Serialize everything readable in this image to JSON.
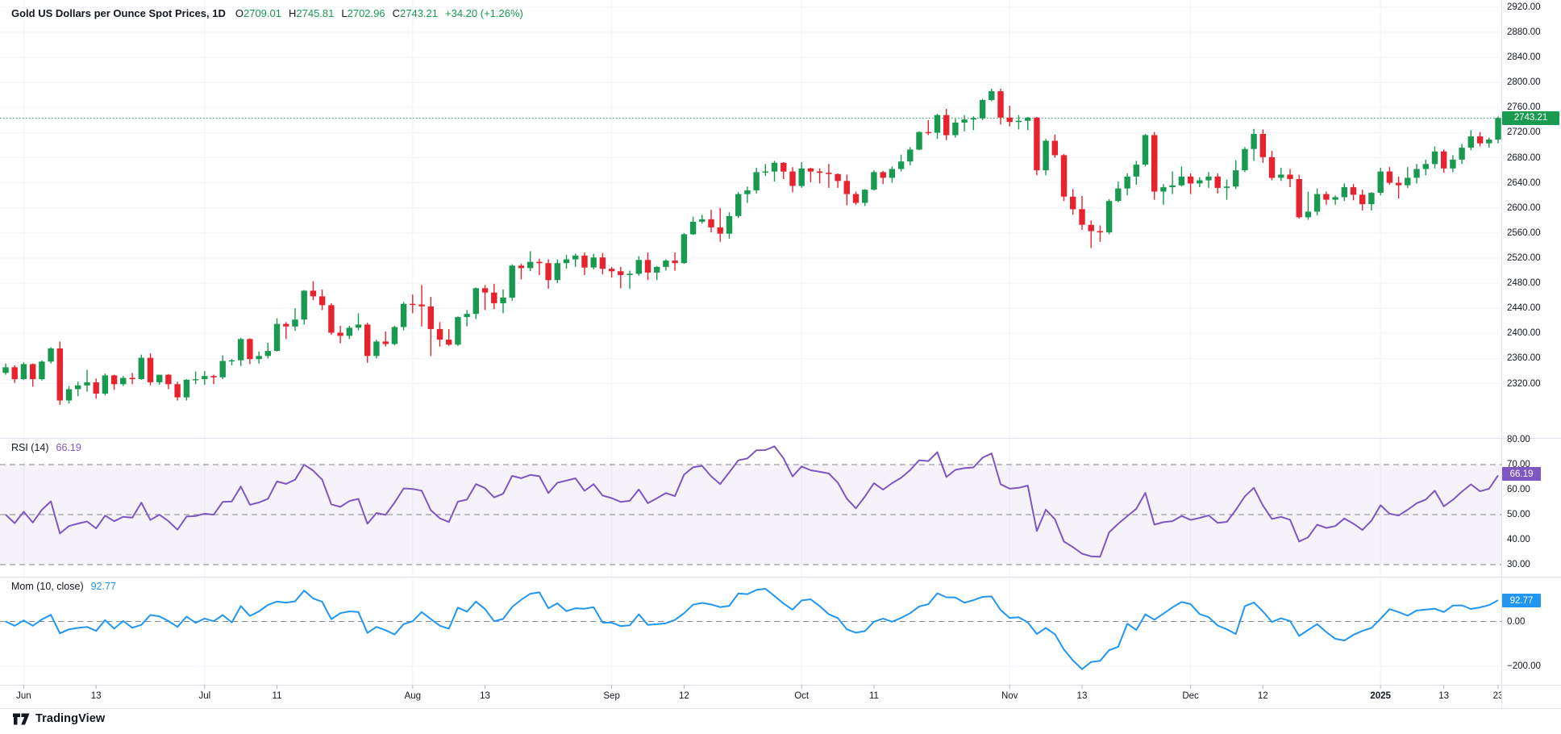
{
  "header": {
    "title": "Gold US Dollars per Ounce Spot Prices, 1D",
    "ohlc": {
      "o_label": "O",
      "o": "2709.01",
      "h_label": "H",
      "h": "2745.81",
      "l_label": "L",
      "l": "2702.96",
      "c_label": "C",
      "c": "2743.21",
      "change": "+34.20 (+1.26%)"
    }
  },
  "indicators": {
    "rsi": {
      "label": "RSI (14)",
      "value": "66.19",
      "color": "#7e57c2",
      "period": 14,
      "overbought": 70,
      "midline": 50,
      "oversold": 30
    },
    "mom": {
      "label": "Mom (10, close)",
      "value": "92.77",
      "color": "#2196f3",
      "period": 10,
      "source": "close",
      "zero_level": 0
    }
  },
  "badges": {
    "price": "2743.21",
    "rsi": "66.19",
    "mom": "92.77"
  },
  "axes": {
    "price": [
      {
        "t": "2920.00",
        "v": 2920
      },
      {
        "t": "2880.00",
        "v": 2880
      },
      {
        "t": "2840.00",
        "v": 2840
      },
      {
        "t": "2800.00",
        "v": 2800
      },
      {
        "t": "2760.00",
        "v": 2760
      },
      {
        "t": "2720.00",
        "v": 2720
      },
      {
        "t": "2680.00",
        "v": 2680
      },
      {
        "t": "2640.00",
        "v": 2640
      },
      {
        "t": "2600.00",
        "v": 2600
      },
      {
        "t": "2560.00",
        "v": 2560
      },
      {
        "t": "2520.00",
        "v": 2520
      },
      {
        "t": "2480.00",
        "v": 2480
      },
      {
        "t": "2440.00",
        "v": 2440
      },
      {
        "t": "2400.00",
        "v": 2400
      },
      {
        "t": "2360.00",
        "v": 2360
      },
      {
        "t": "2320.00",
        "v": 2320
      }
    ],
    "rsi": [
      {
        "t": "80.00",
        "v": 80
      },
      {
        "t": "70.00",
        "v": 70
      },
      {
        "t": "60.00",
        "v": 60
      },
      {
        "t": "50.00",
        "v": 50
      },
      {
        "t": "40.00",
        "v": 40
      },
      {
        "t": "30.00",
        "v": 30
      }
    ],
    "mom": [
      {
        "t": "0.00",
        "v": 0
      },
      {
        "t": "−200.00",
        "v": -200
      }
    ],
    "time": [
      {
        "t": "Jun",
        "i": 2,
        "m": false
      },
      {
        "t": "13",
        "i": 10,
        "m": false
      },
      {
        "t": "Jul",
        "i": 22,
        "m": false
      },
      {
        "t": "11",
        "i": 30,
        "m": false
      },
      {
        "t": "Aug",
        "i": 45,
        "m": false
      },
      {
        "t": "13",
        "i": 53,
        "m": false
      },
      {
        "t": "Sep",
        "i": 67,
        "m": false
      },
      {
        "t": "12",
        "i": 75,
        "m": false
      },
      {
        "t": "Oct",
        "i": 88,
        "m": false
      },
      {
        "t": "11",
        "i": 96,
        "m": false
      },
      {
        "t": "Nov",
        "i": 111,
        "m": false
      },
      {
        "t": "13",
        "i": 119,
        "m": false
      },
      {
        "t": "Dec",
        "i": 131,
        "m": false
      },
      {
        "t": "12",
        "i": 139,
        "m": false
      },
      {
        "t": "2025",
        "i": 152,
        "m": true
      },
      {
        "t": "13",
        "i": 159,
        "m": false
      },
      {
        "t": "23",
        "i": 165,
        "m": false
      }
    ]
  },
  "colors": {
    "up": "#189a50",
    "down": "#e8232e",
    "grid": "#f0f3fa",
    "border": "#e0e3eb",
    "level": "#82858f",
    "tick": "#b2b5be",
    "text": "#131722",
    "rsi_band": "rgba(126,87,194,0.08)"
  },
  "footer": {
    "brand": "TradingView"
  },
  "chart_data": {
    "type": "candlestick",
    "symbol": "Gold US Dollars per Ounce Spot Prices",
    "interval": "1D",
    "date_range": "late May 2024 to Jan 23 2025",
    "price_axis_visible_range": [
      2233,
      2931
    ],
    "rsi_axis_visible_range": [
      26,
      81
    ],
    "mom_axis_visible_range": [
      -290,
      196
    ],
    "last": {
      "o": 2709.01,
      "h": 2745.81,
      "l": 2702.96,
      "c": 2743.21,
      "change": "+34.20",
      "change_pct": "+1.26%"
    },
    "month_start_indices": [
      2,
      22,
      45,
      67,
      88,
      111,
      131,
      152
    ],
    "candles": [
      [
        2337,
        2352,
        2334,
        2346
      ],
      [
        2346,
        2349,
        2321,
        2327
      ],
      [
        2327,
        2354,
        2326,
        2351
      ],
      [
        2351,
        2352,
        2315,
        2327
      ],
      [
        2327,
        2357,
        2325,
        2355
      ],
      [
        2355,
        2378,
        2352,
        2376
      ],
      [
        2376,
        2387,
        2286,
        2293
      ],
      [
        2293,
        2316,
        2288,
        2311
      ],
      [
        2311,
        2323,
        2300,
        2317
      ],
      [
        2317,
        2342,
        2307,
        2322
      ],
      [
        2322,
        2328,
        2296,
        2304
      ],
      [
        2304,
        2336,
        2301,
        2333
      ],
      [
        2333,
        2334,
        2310,
        2319
      ],
      [
        2319,
        2332,
        2316,
        2329
      ],
      [
        2329,
        2337,
        2319,
        2327
      ],
      [
        2327,
        2366,
        2326,
        2361
      ],
      [
        2361,
        2368,
        2317,
        2322
      ],
      [
        2322,
        2334,
        2318,
        2334
      ],
      [
        2334,
        2335,
        2311,
        2319
      ],
      [
        2319,
        2323,
        2293,
        2298
      ],
      [
        2298,
        2327,
        2293,
        2326
      ],
      [
        2326,
        2339,
        2319,
        2327
      ],
      [
        2327,
        2340,
        2318,
        2332
      ],
      [
        2332,
        2334,
        2319,
        2330
      ],
      [
        2330,
        2365,
        2327,
        2356
      ],
      [
        2356,
        2359,
        2349,
        2357
      ],
      [
        2357,
        2393,
        2348,
        2391
      ],
      [
        2391,
        2392,
        2351,
        2359
      ],
      [
        2359,
        2371,
        2352,
        2364
      ],
      [
        2364,
        2385,
        2360,
        2372
      ],
      [
        2372,
        2424,
        2371,
        2415
      ],
      [
        2415,
        2418,
        2391,
        2411
      ],
      [
        2411,
        2440,
        2404,
        2422
      ],
      [
        2422,
        2469,
        2414,
        2468
      ],
      [
        2468,
        2483,
        2453,
        2459
      ],
      [
        2459,
        2470,
        2437,
        2445
      ],
      [
        2445,
        2448,
        2398,
        2401
      ],
      [
        2401,
        2412,
        2384,
        2396
      ],
      [
        2396,
        2412,
        2391,
        2409
      ],
      [
        2409,
        2432,
        2405,
        2414
      ],
      [
        2414,
        2417,
        2353,
        2364
      ],
      [
        2364,
        2390,
        2360,
        2387
      ],
      [
        2387,
        2403,
        2379,
        2383
      ],
      [
        2383,
        2412,
        2381,
        2410
      ],
      [
        2410,
        2450,
        2405,
        2447
      ],
      [
        2447,
        2462,
        2432,
        2446
      ],
      [
        2446,
        2477,
        2411,
        2443
      ],
      [
        2443,
        2458,
        2364,
        2407
      ],
      [
        2407,
        2418,
        2379,
        2390
      ],
      [
        2390,
        2407,
        2380,
        2382
      ],
      [
        2382,
        2427,
        2380,
        2426
      ],
      [
        2426,
        2437,
        2411,
        2431
      ],
      [
        2431,
        2473,
        2423,
        2472
      ],
      [
        2472,
        2477,
        2437,
        2465
      ],
      [
        2465,
        2479,
        2439,
        2448
      ],
      [
        2448,
        2470,
        2432,
        2457
      ],
      [
        2457,
        2510,
        2452,
        2508
      ],
      [
        2508,
        2511,
        2486,
        2504
      ],
      [
        2504,
        2531,
        2499,
        2514
      ],
      [
        2514,
        2519,
        2493,
        2512
      ],
      [
        2512,
        2518,
        2471,
        2485
      ],
      [
        2485,
        2518,
        2480,
        2512
      ],
      [
        2512,
        2525,
        2503,
        2518
      ],
      [
        2518,
        2527,
        2506,
        2524
      ],
      [
        2524,
        2529,
        2493,
        2505
      ],
      [
        2505,
        2527,
        2502,
        2521
      ],
      [
        2521,
        2528,
        2494,
        2503
      ],
      [
        2503,
        2506,
        2489,
        2499
      ],
      [
        2499,
        2506,
        2472,
        2493
      ],
      [
        2493,
        2500,
        2471,
        2495
      ],
      [
        2495,
        2523,
        2492,
        2517
      ],
      [
        2517,
        2529,
        2485,
        2497
      ],
      [
        2497,
        2507,
        2485,
        2506
      ],
      [
        2506,
        2518,
        2500,
        2516
      ],
      [
        2516,
        2529,
        2500,
        2512
      ],
      [
        2512,
        2560,
        2511,
        2558
      ],
      [
        2558,
        2586,
        2557,
        2578
      ],
      [
        2578,
        2589,
        2575,
        2582
      ],
      [
        2582,
        2597,
        2561,
        2569
      ],
      [
        2569,
        2600,
        2546,
        2559
      ],
      [
        2559,
        2593,
        2551,
        2587
      ],
      [
        2587,
        2625,
        2584,
        2622
      ],
      [
        2622,
        2634,
        2608,
        2628
      ],
      [
        2628,
        2664,
        2623,
        2657
      ],
      [
        2657,
        2670,
        2651,
        2658
      ],
      [
        2658,
        2675,
        2642,
        2672
      ],
      [
        2672,
        2673,
        2646,
        2658
      ],
      [
        2658,
        2665,
        2625,
        2635
      ],
      [
        2635,
        2673,
        2632,
        2663
      ],
      [
        2663,
        2664,
        2641,
        2658
      ],
      [
        2658,
        2663,
        2639,
        2656
      ],
      [
        2656,
        2670,
        2632,
        2654
      ],
      [
        2654,
        2655,
        2632,
        2643
      ],
      [
        2643,
        2653,
        2604,
        2622
      ],
      [
        2622,
        2626,
        2605,
        2608
      ],
      [
        2608,
        2630,
        2603,
        2629
      ],
      [
        2629,
        2660,
        2628,
        2657
      ],
      [
        2657,
        2659,
        2638,
        2648
      ],
      [
        2648,
        2666,
        2640,
        2662
      ],
      [
        2662,
        2685,
        2658,
        2674
      ],
      [
        2674,
        2697,
        2668,
        2693
      ],
      [
        2693,
        2722,
        2692,
        2721
      ],
      [
        2721,
        2740,
        2716,
        2720
      ],
      [
        2720,
        2750,
        2710,
        2748
      ],
      [
        2748,
        2758,
        2708,
        2716
      ],
      [
        2716,
        2742,
        2712,
        2736
      ],
      [
        2736,
        2748,
        2722,
        2741
      ],
      [
        2741,
        2746,
        2724,
        2743
      ],
      [
        2743,
        2774,
        2740,
        2772
      ],
      [
        2772,
        2790,
        2770,
        2786
      ],
      [
        2786,
        2790,
        2733,
        2744
      ],
      [
        2744,
        2763,
        2730,
        2737
      ],
      [
        2737,
        2748,
        2725,
        2739
      ],
      [
        2739,
        2745,
        2724,
        2744
      ],
      [
        2744,
        2745,
        2652,
        2660
      ],
      [
        2660,
        2710,
        2652,
        2707
      ],
      [
        2707,
        2717,
        2680,
        2684
      ],
      [
        2684,
        2686,
        2611,
        2618
      ],
      [
        2618,
        2630,
        2589,
        2598
      ],
      [
        2598,
        2619,
        2565,
        2573
      ],
      [
        2573,
        2580,
        2536,
        2563
      ],
      [
        2563,
        2572,
        2546,
        2561
      ],
      [
        2561,
        2614,
        2558,
        2611
      ],
      [
        2611,
        2642,
        2609,
        2631
      ],
      [
        2631,
        2655,
        2620,
        2650
      ],
      [
        2650,
        2675,
        2637,
        2669
      ],
      [
        2669,
        2718,
        2666,
        2716
      ],
      [
        2716,
        2721,
        2613,
        2626
      ],
      [
        2626,
        2638,
        2605,
        2633
      ],
      [
        2633,
        2658,
        2622,
        2636
      ],
      [
        2636,
        2666,
        2634,
        2650
      ],
      [
        2650,
        2655,
        2622,
        2639
      ],
      [
        2639,
        2649,
        2633,
        2644
      ],
      [
        2644,
        2657,
        2632,
        2650
      ],
      [
        2650,
        2655,
        2623,
        2632
      ],
      [
        2632,
        2645,
        2613,
        2634
      ],
      [
        2634,
        2676,
        2630,
        2660
      ],
      [
        2660,
        2697,
        2657,
        2694
      ],
      [
        2694,
        2726,
        2675,
        2718
      ],
      [
        2718,
        2725,
        2672,
        2681
      ],
      [
        2681,
        2691,
        2644,
        2648
      ],
      [
        2648,
        2664,
        2643,
        2653
      ],
      [
        2653,
        2662,
        2633,
        2646
      ],
      [
        2646,
        2653,
        2583,
        2585
      ],
      [
        2585,
        2626,
        2581,
        2594
      ],
      [
        2594,
        2631,
        2588,
        2622
      ],
      [
        2622,
        2626,
        2605,
        2613
      ],
      [
        2613,
        2620,
        2605,
        2617
      ],
      [
        2617,
        2639,
        2611,
        2633
      ],
      [
        2633,
        2638,
        2612,
        2621
      ],
      [
        2621,
        2629,
        2596,
        2606
      ],
      [
        2606,
        2625,
        2596,
        2624
      ],
      [
        2624,
        2664,
        2620,
        2658
      ],
      [
        2658,
        2665,
        2637,
        2640
      ],
      [
        2640,
        2650,
        2615,
        2636
      ],
      [
        2636,
        2665,
        2632,
        2648
      ],
      [
        2648,
        2670,
        2639,
        2662
      ],
      [
        2662,
        2677,
        2652,
        2670
      ],
      [
        2670,
        2698,
        2663,
        2690
      ],
      [
        2690,
        2693,
        2656,
        2663
      ],
      [
        2663,
        2684,
        2657,
        2677
      ],
      [
        2677,
        2702,
        2670,
        2696
      ],
      [
        2696,
        2724,
        2692,
        2714
      ],
      [
        2714,
        2721,
        2698,
        2703
      ],
      [
        2703,
        2712,
        2696,
        2709
      ],
      [
        2709.01,
        2745.81,
        2702.96,
        2743.21
      ]
    ]
  }
}
